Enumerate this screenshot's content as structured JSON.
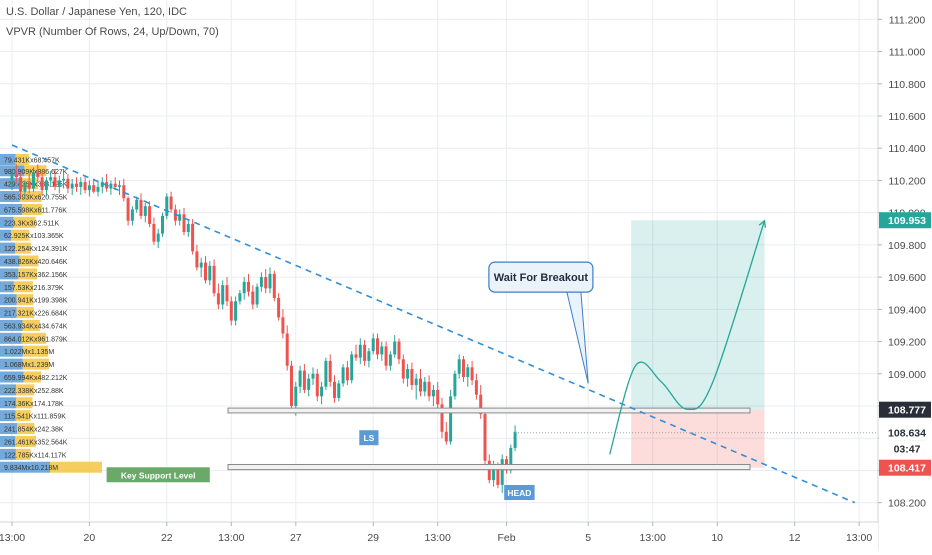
{
  "header": {
    "title": "U.S. Dollar / Japanese Yen, 120, IDC",
    "indicator": "VPVR (Number Of Rows, 24, Up/Down, 70)"
  },
  "chart_data": {
    "type": "candlestick",
    "price_axis": {
      "range": [
        108.08,
        111.32
      ],
      "ticks": [
        "111.200",
        "111.000",
        "110.800",
        "110.600",
        "110.400",
        "110.200",
        "110.000",
        "109.800",
        "109.600",
        "109.400",
        "109.200",
        "109.000",
        "108.800",
        "108.600",
        "108.400",
        "108.200"
      ]
    },
    "time_axis": {
      "labels": [
        "13:00",
        "20",
        "22",
        "13:00",
        "27",
        "29",
        "13:00",
        "Feb",
        "5",
        "13:00",
        "10",
        "12",
        "13:00"
      ],
      "tick_bars": [
        0,
        18,
        36,
        51,
        66,
        84,
        99,
        115,
        134,
        149,
        164,
        182,
        197
      ]
    },
    "price_tags": [
      {
        "value": "109.953",
        "color": "#26a69a"
      },
      {
        "value": "108.777",
        "color": "#2a2e39"
      },
      {
        "value": "108.634",
        "color": "#ffffff",
        "text_color": "#2a2e39"
      },
      {
        "value": "03:47",
        "color": "#ffffff",
        "text_color": "#2a2e39"
      },
      {
        "value": "108.417",
        "color": "#ef5350"
      }
    ],
    "candles": [
      [
        110.2,
        110.27,
        110.14,
        110.24
      ],
      [
        110.24,
        110.3,
        110.18,
        110.22
      ],
      [
        110.22,
        110.25,
        110.1,
        110.13
      ],
      [
        110.13,
        110.2,
        110.09,
        110.18
      ],
      [
        110.18,
        110.24,
        110.12,
        110.15
      ],
      [
        110.15,
        110.28,
        110.13,
        110.25
      ],
      [
        110.25,
        110.3,
        110.19,
        110.22
      ],
      [
        110.22,
        110.26,
        110.11,
        110.14
      ],
      [
        110.14,
        110.22,
        110.1,
        110.2
      ],
      [
        110.2,
        110.26,
        110.16,
        110.22
      ],
      [
        110.22,
        110.27,
        110.14,
        110.16
      ],
      [
        110.16,
        110.23,
        110.12,
        110.2
      ],
      [
        110.2,
        110.25,
        110.15,
        110.21
      ],
      [
        110.21,
        110.24,
        110.12,
        110.15
      ],
      [
        110.15,
        110.21,
        110.11,
        110.18
      ],
      [
        110.18,
        110.22,
        110.13,
        110.16
      ],
      [
        110.16,
        110.22,
        110.11,
        110.19
      ],
      [
        110.19,
        110.23,
        110.12,
        110.14
      ],
      [
        110.14,
        110.2,
        110.1,
        110.17
      ],
      [
        110.17,
        110.21,
        110.12,
        110.13
      ],
      [
        110.13,
        110.19,
        110.1,
        110.16
      ],
      [
        110.16,
        110.22,
        110.12,
        110.19
      ],
      [
        110.19,
        110.24,
        110.13,
        110.15
      ],
      [
        110.15,
        110.2,
        110.11,
        110.18
      ],
      [
        110.18,
        110.22,
        110.14,
        110.16
      ],
      [
        110.16,
        110.2,
        110.11,
        110.17
      ],
      [
        110.17,
        110.21,
        110.07,
        110.09
      ],
      [
        110.09,
        110.1,
        109.92,
        109.95
      ],
      [
        109.95,
        110.04,
        109.92,
        110.02
      ],
      [
        110.02,
        110.1,
        110.0,
        110.08
      ],
      [
        110.08,
        110.12,
        109.96,
        109.98
      ],
      [
        109.98,
        110.06,
        109.94,
        110.04
      ],
      [
        110.04,
        110.07,
        109.91,
        109.93
      ],
      [
        109.93,
        109.97,
        109.8,
        109.82
      ],
      [
        109.82,
        109.9,
        109.78,
        109.87
      ],
      [
        109.87,
        110.0,
        109.85,
        109.98
      ],
      [
        109.98,
        110.12,
        109.96,
        110.1
      ],
      [
        110.1,
        110.13,
        110.0,
        110.02
      ],
      [
        110.02,
        110.05,
        109.92,
        109.95
      ],
      [
        109.95,
        110.02,
        109.92,
        109.99
      ],
      [
        109.99,
        110.03,
        109.86,
        109.88
      ],
      [
        109.88,
        109.96,
        109.85,
        109.93
      ],
      [
        109.93,
        109.96,
        109.74,
        109.76
      ],
      [
        109.76,
        109.8,
        109.64,
        109.66
      ],
      [
        109.66,
        109.72,
        109.6,
        109.69
      ],
      [
        109.69,
        109.73,
        109.56,
        109.58
      ],
      [
        109.58,
        109.7,
        109.55,
        109.67
      ],
      [
        109.67,
        109.71,
        109.48,
        109.5
      ],
      [
        109.5,
        109.56,
        109.4,
        109.43
      ],
      [
        109.43,
        109.58,
        109.4,
        109.55
      ],
      [
        109.55,
        109.6,
        109.42,
        109.45
      ],
      [
        109.45,
        109.48,
        109.3,
        109.33
      ],
      [
        109.33,
        109.48,
        109.3,
        109.45
      ],
      [
        109.45,
        109.52,
        109.43,
        109.5
      ],
      [
        109.5,
        109.6,
        109.46,
        109.57
      ],
      [
        109.57,
        109.62,
        109.48,
        109.51
      ],
      [
        109.51,
        109.55,
        109.4,
        109.43
      ],
      [
        109.43,
        109.56,
        109.41,
        109.54
      ],
      [
        109.54,
        109.63,
        109.51,
        109.6
      ],
      [
        109.6,
        109.65,
        109.5,
        109.53
      ],
      [
        109.53,
        109.66,
        109.5,
        109.62
      ],
      [
        109.62,
        109.64,
        109.45,
        109.47
      ],
      [
        109.47,
        109.5,
        109.33,
        109.35
      ],
      [
        109.35,
        109.4,
        109.22,
        109.25
      ],
      [
        109.25,
        109.3,
        109.02,
        109.05
      ],
      [
        109.05,
        109.08,
        108.76,
        108.8
      ],
      [
        108.8,
        108.95,
        108.74,
        108.92
      ],
      [
        108.92,
        109.05,
        108.88,
        109.02
      ],
      [
        109.02,
        109.06,
        108.88,
        108.9
      ],
      [
        108.9,
        109.0,
        108.86,
        108.97
      ],
      [
        108.97,
        109.04,
        108.93,
        109.0
      ],
      [
        109.0,
        109.03,
        108.83,
        108.86
      ],
      [
        108.86,
        108.95,
        108.81,
        108.92
      ],
      [
        108.92,
        109.1,
        108.9,
        109.08
      ],
      [
        109.08,
        109.12,
        108.92,
        108.95
      ],
      [
        108.95,
        108.99,
        108.82,
        108.85
      ],
      [
        108.85,
        108.96,
        108.83,
        108.94
      ],
      [
        108.94,
        109.06,
        108.92,
        109.04
      ],
      [
        109.04,
        109.08,
        108.93,
        108.96
      ],
      [
        108.96,
        109.14,
        108.94,
        109.12
      ],
      [
        109.12,
        109.18,
        109.08,
        109.1
      ],
      [
        109.1,
        109.22,
        109.06,
        109.18
      ],
      [
        109.18,
        109.21,
        109.05,
        109.08
      ],
      [
        109.08,
        109.16,
        109.04,
        109.14
      ],
      [
        109.14,
        109.25,
        109.12,
        109.22
      ],
      [
        109.22,
        109.25,
        109.09,
        109.12
      ],
      [
        109.12,
        109.2,
        109.08,
        109.17
      ],
      [
        109.17,
        109.2,
        109.02,
        109.05
      ],
      [
        109.05,
        109.14,
        109.02,
        109.12
      ],
      [
        109.12,
        109.24,
        109.1,
        109.2
      ],
      [
        109.2,
        109.22,
        109.06,
        109.09
      ],
      [
        109.09,
        109.12,
        108.94,
        108.97
      ],
      [
        108.97,
        109.06,
        108.92,
        109.03
      ],
      [
        109.03,
        109.07,
        108.9,
        108.93
      ],
      [
        108.93,
        109.0,
        108.84,
        108.97
      ],
      [
        108.97,
        109.03,
        108.86,
        108.89
      ],
      [
        108.89,
        108.98,
        108.86,
        108.95
      ],
      [
        108.95,
        108.99,
        108.83,
        108.86
      ],
      [
        108.86,
        108.93,
        108.8,
        108.9
      ],
      [
        108.9,
        108.95,
        108.78,
        108.81
      ],
      [
        108.81,
        108.85,
        108.6,
        108.64
      ],
      [
        108.64,
        108.7,
        108.56,
        108.58
      ],
      [
        108.58,
        108.9,
        108.56,
        108.86
      ],
      [
        108.86,
        109.02,
        108.84,
        109.0
      ],
      [
        109.0,
        109.12,
        108.97,
        109.09
      ],
      [
        109.09,
        109.11,
        108.95,
        108.98
      ],
      [
        108.98,
        109.06,
        108.92,
        109.04
      ],
      [
        109.04,
        109.08,
        108.93,
        108.96
      ],
      [
        108.96,
        109.0,
        108.84,
        108.87
      ],
      [
        108.87,
        108.93,
        108.72,
        108.75
      ],
      [
        108.75,
        108.78,
        108.43,
        108.46
      ],
      [
        108.46,
        108.5,
        108.32,
        108.34
      ],
      [
        108.34,
        108.46,
        108.3,
        108.43
      ],
      [
        108.43,
        108.45,
        108.29,
        108.31
      ],
      [
        108.31,
        108.5,
        108.26,
        108.47
      ],
      [
        108.47,
        108.49,
        108.38,
        108.4
      ],
      [
        108.4,
        108.56,
        108.38,
        108.54
      ],
      [
        108.54,
        108.68,
        108.52,
        108.64
      ]
    ],
    "volume_profile": {
      "rows": [
        {
          "label": "79.431Kx68.457K",
          "price": 110.33,
          "up": 79.431,
          "down": 68.457
        },
        {
          "label": "980.909Kx886.627K",
          "price": 110.26,
          "up": 980.909,
          "down": 886.627
        },
        {
          "label": "429.436Kx383.125K",
          "price": 110.18,
          "up": 429.436,
          "down": 383.125
        },
        {
          "label": "565.393Kx620.755K",
          "price": 110.1,
          "up": 565.393,
          "down": 620.755
        },
        {
          "label": "675.598Kx611.776K",
          "price": 110.02,
          "up": 675.598,
          "down": 611.776
        },
        {
          "label": "223.3Kx362.511K",
          "price": 109.94,
          "up": 223.3,
          "down": 362.511
        },
        {
          "label": "62.925Kx103.365K",
          "price": 109.86,
          "up": 62.925,
          "down": 103.365
        },
        {
          "label": "122.254Kx124.391K",
          "price": 109.78,
          "up": 122.254,
          "down": 124.391
        },
        {
          "label": "438.826Kx420.646K",
          "price": 109.7,
          "up": 438.826,
          "down": 420.646
        },
        {
          "label": "353.157Kx362.156K",
          "price": 109.62,
          "up": 353.157,
          "down": 362.156
        },
        {
          "label": "157.53Kx216.379K",
          "price": 109.54,
          "up": 157.53,
          "down": 216.379
        },
        {
          "label": "200.941Kx199.398K",
          "price": 109.46,
          "up": 200.941,
          "down": 199.398
        },
        {
          "label": "217.321Kx226.684K",
          "price": 109.38,
          "up": 217.321,
          "down": 226.684
        },
        {
          "label": "563.934Kx434.674K",
          "price": 109.3,
          "up": 563.934,
          "down": 434.674
        },
        {
          "label": "864.012Kx961.879K",
          "price": 109.22,
          "up": 864.012,
          "down": 961.879
        },
        {
          "label": "1.022Mx1.135M",
          "price": 109.14,
          "up": 1022,
          "down": 1135
        },
        {
          "label": "1.068Mx1.239M",
          "price": 109.06,
          "up": 1068,
          "down": 1239
        },
        {
          "label": "659.994Kx482.212K",
          "price": 108.98,
          "up": 659.994,
          "down": 482.212
        },
        {
          "label": "222.338Kx252.88K",
          "price": 108.9,
          "up": 222.338,
          "down": 252.88
        },
        {
          "label": "174.36Kx174.178K",
          "price": 108.82,
          "up": 174.36,
          "down": 174.178
        },
        {
          "label": "115.541Kx111.859K",
          "price": 108.74,
          "up": 115.541,
          "down": 111.859
        },
        {
          "label": "241.854Kx242.38K",
          "price": 108.66,
          "up": 241.854,
          "down": 242.38
        },
        {
          "label": "261.461Kx352.564K",
          "price": 108.58,
          "up": 261.461,
          "down": 352.564
        },
        {
          "label": "122.785Kx114.117K",
          "price": 108.5,
          "up": 122.785,
          "down": 114.117
        },
        {
          "label": "9.834Mx10.218M",
          "price": 108.42,
          "up": 9834,
          "down": 10218
        }
      ]
    },
    "trendline": {
      "from": [
        0,
        110.42
      ],
      "to": [
        196,
        108.2
      ]
    },
    "support_zones": [
      [
        108.757,
        108.787
      ],
      [
        108.405,
        108.437
      ]
    ],
    "position": {
      "entry": 108.777,
      "target": 109.953,
      "stop": 108.417,
      "start_bar": 144,
      "end_bar": 175
    },
    "projection": [
      [
        139,
        108.5
      ],
      [
        145,
        109.05
      ],
      [
        151,
        108.95
      ],
      [
        157,
        108.78
      ],
      [
        163,
        108.95
      ],
      [
        175,
        109.95
      ]
    ],
    "annotations": {
      "callout": {
        "text": "Wait For Breakout",
        "anchor": [
          134,
          108.94
        ],
        "bar": 123,
        "price": 109.6
      },
      "labels": [
        {
          "text": "LS",
          "bar": 83,
          "price": 108.6,
          "color": "#5b9bd5"
        },
        {
          "text": "HEAD",
          "bar": 118,
          "price": 108.26,
          "color": "#5b9bd5"
        },
        {
          "text": "Key Support Level",
          "bar": 34,
          "price": 108.37,
          "color": "#6aa96a"
        }
      ]
    },
    "colors": {
      "up": "#26a69a",
      "down": "#ef5350",
      "vp_up": "#5b9bd5",
      "vp_down": "#f5c542",
      "trend": "#2f8fd8",
      "grid": "#e9ecf2"
    }
  }
}
